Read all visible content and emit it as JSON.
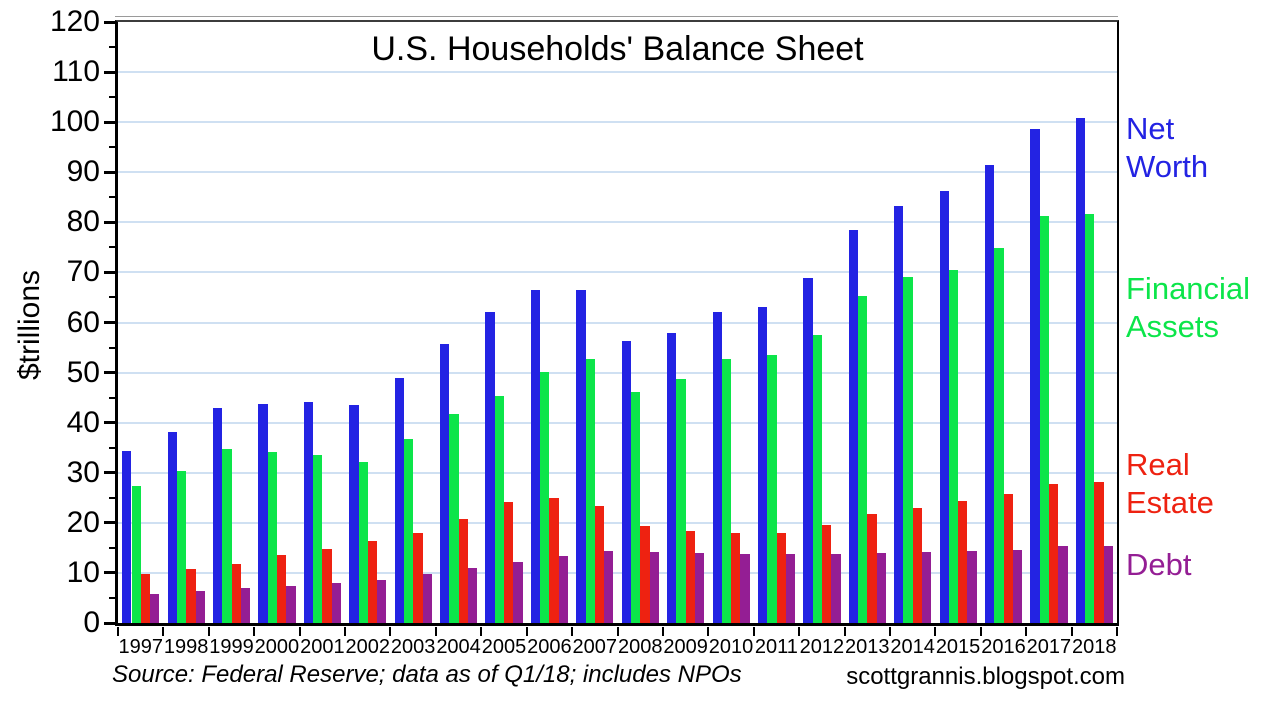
{
  "title": "U.S. Households' Balance Sheet",
  "ylabel": "$trillions",
  "source_note": "Source: Federal Reserve; data as of Q1/18; includes NPOs",
  "credit": "scottgrannis.blogspot.com",
  "colors": {
    "net_worth": "#2323e3",
    "financial_assets": "#0ce54a",
    "real_estate": "#ee2211",
    "debt": "#941e94",
    "gridline": "#cfe0f2"
  },
  "chart_data": {
    "type": "bar",
    "title": "U.S. Households' Balance Sheet",
    "xlabel": "",
    "ylabel": "$trillions",
    "ylim": [
      0,
      120
    ],
    "ytick_step": 10,
    "ytick_minor_step": 5,
    "grid": true,
    "legend_position": "right",
    "categories": [
      "1997",
      "1998",
      "1999",
      "2000",
      "2001",
      "2002",
      "2003",
      "2004",
      "2005",
      "2006",
      "2007",
      "2008",
      "2009",
      "2010",
      "2011",
      "2012",
      "2013",
      "2014",
      "2015",
      "2016",
      "2017",
      "2018"
    ],
    "series": [
      {
        "name": "Net Worth",
        "legend_label": "Net\nWorth",
        "color": "#2323e3",
        "values": [
          34.3,
          38.1,
          43.0,
          43.7,
          44.1,
          43.6,
          48.9,
          55.8,
          62.0,
          66.4,
          66.5,
          56.3,
          57.9,
          62.0,
          63.1,
          68.8,
          78.4,
          83.2,
          86.3,
          91.5,
          98.7,
          100.8
        ]
      },
      {
        "name": "Financial Assets",
        "legend_label": "Financial\nAssets",
        "color": "#0ce54a",
        "values": [
          27.3,
          30.4,
          34.8,
          34.1,
          33.6,
          32.1,
          36.8,
          41.8,
          45.4,
          50.2,
          52.8,
          46.1,
          48.7,
          52.8,
          53.5,
          57.6,
          65.2,
          69.0,
          70.5,
          74.8,
          81.2,
          81.7
        ]
      },
      {
        "name": "Real Estate",
        "legend_label": "Real\nEstate",
        "color": "#ee2211",
        "values": [
          9.7,
          10.8,
          11.8,
          13.5,
          14.8,
          16.3,
          17.9,
          20.8,
          24.2,
          24.9,
          23.3,
          19.3,
          18.3,
          17.9,
          17.9,
          19.5,
          21.8,
          22.9,
          24.3,
          25.8,
          27.7,
          28.2
        ]
      },
      {
        "name": "Debt",
        "legend_label": "Debt",
        "color": "#941e94",
        "values": [
          5.7,
          6.4,
          6.9,
          7.4,
          7.9,
          8.6,
          9.8,
          10.9,
          12.2,
          13.4,
          14.3,
          14.2,
          14.0,
          13.8,
          13.7,
          13.8,
          14.0,
          14.2,
          14.3,
          14.6,
          15.4,
          15.3
        ]
      }
    ]
  }
}
